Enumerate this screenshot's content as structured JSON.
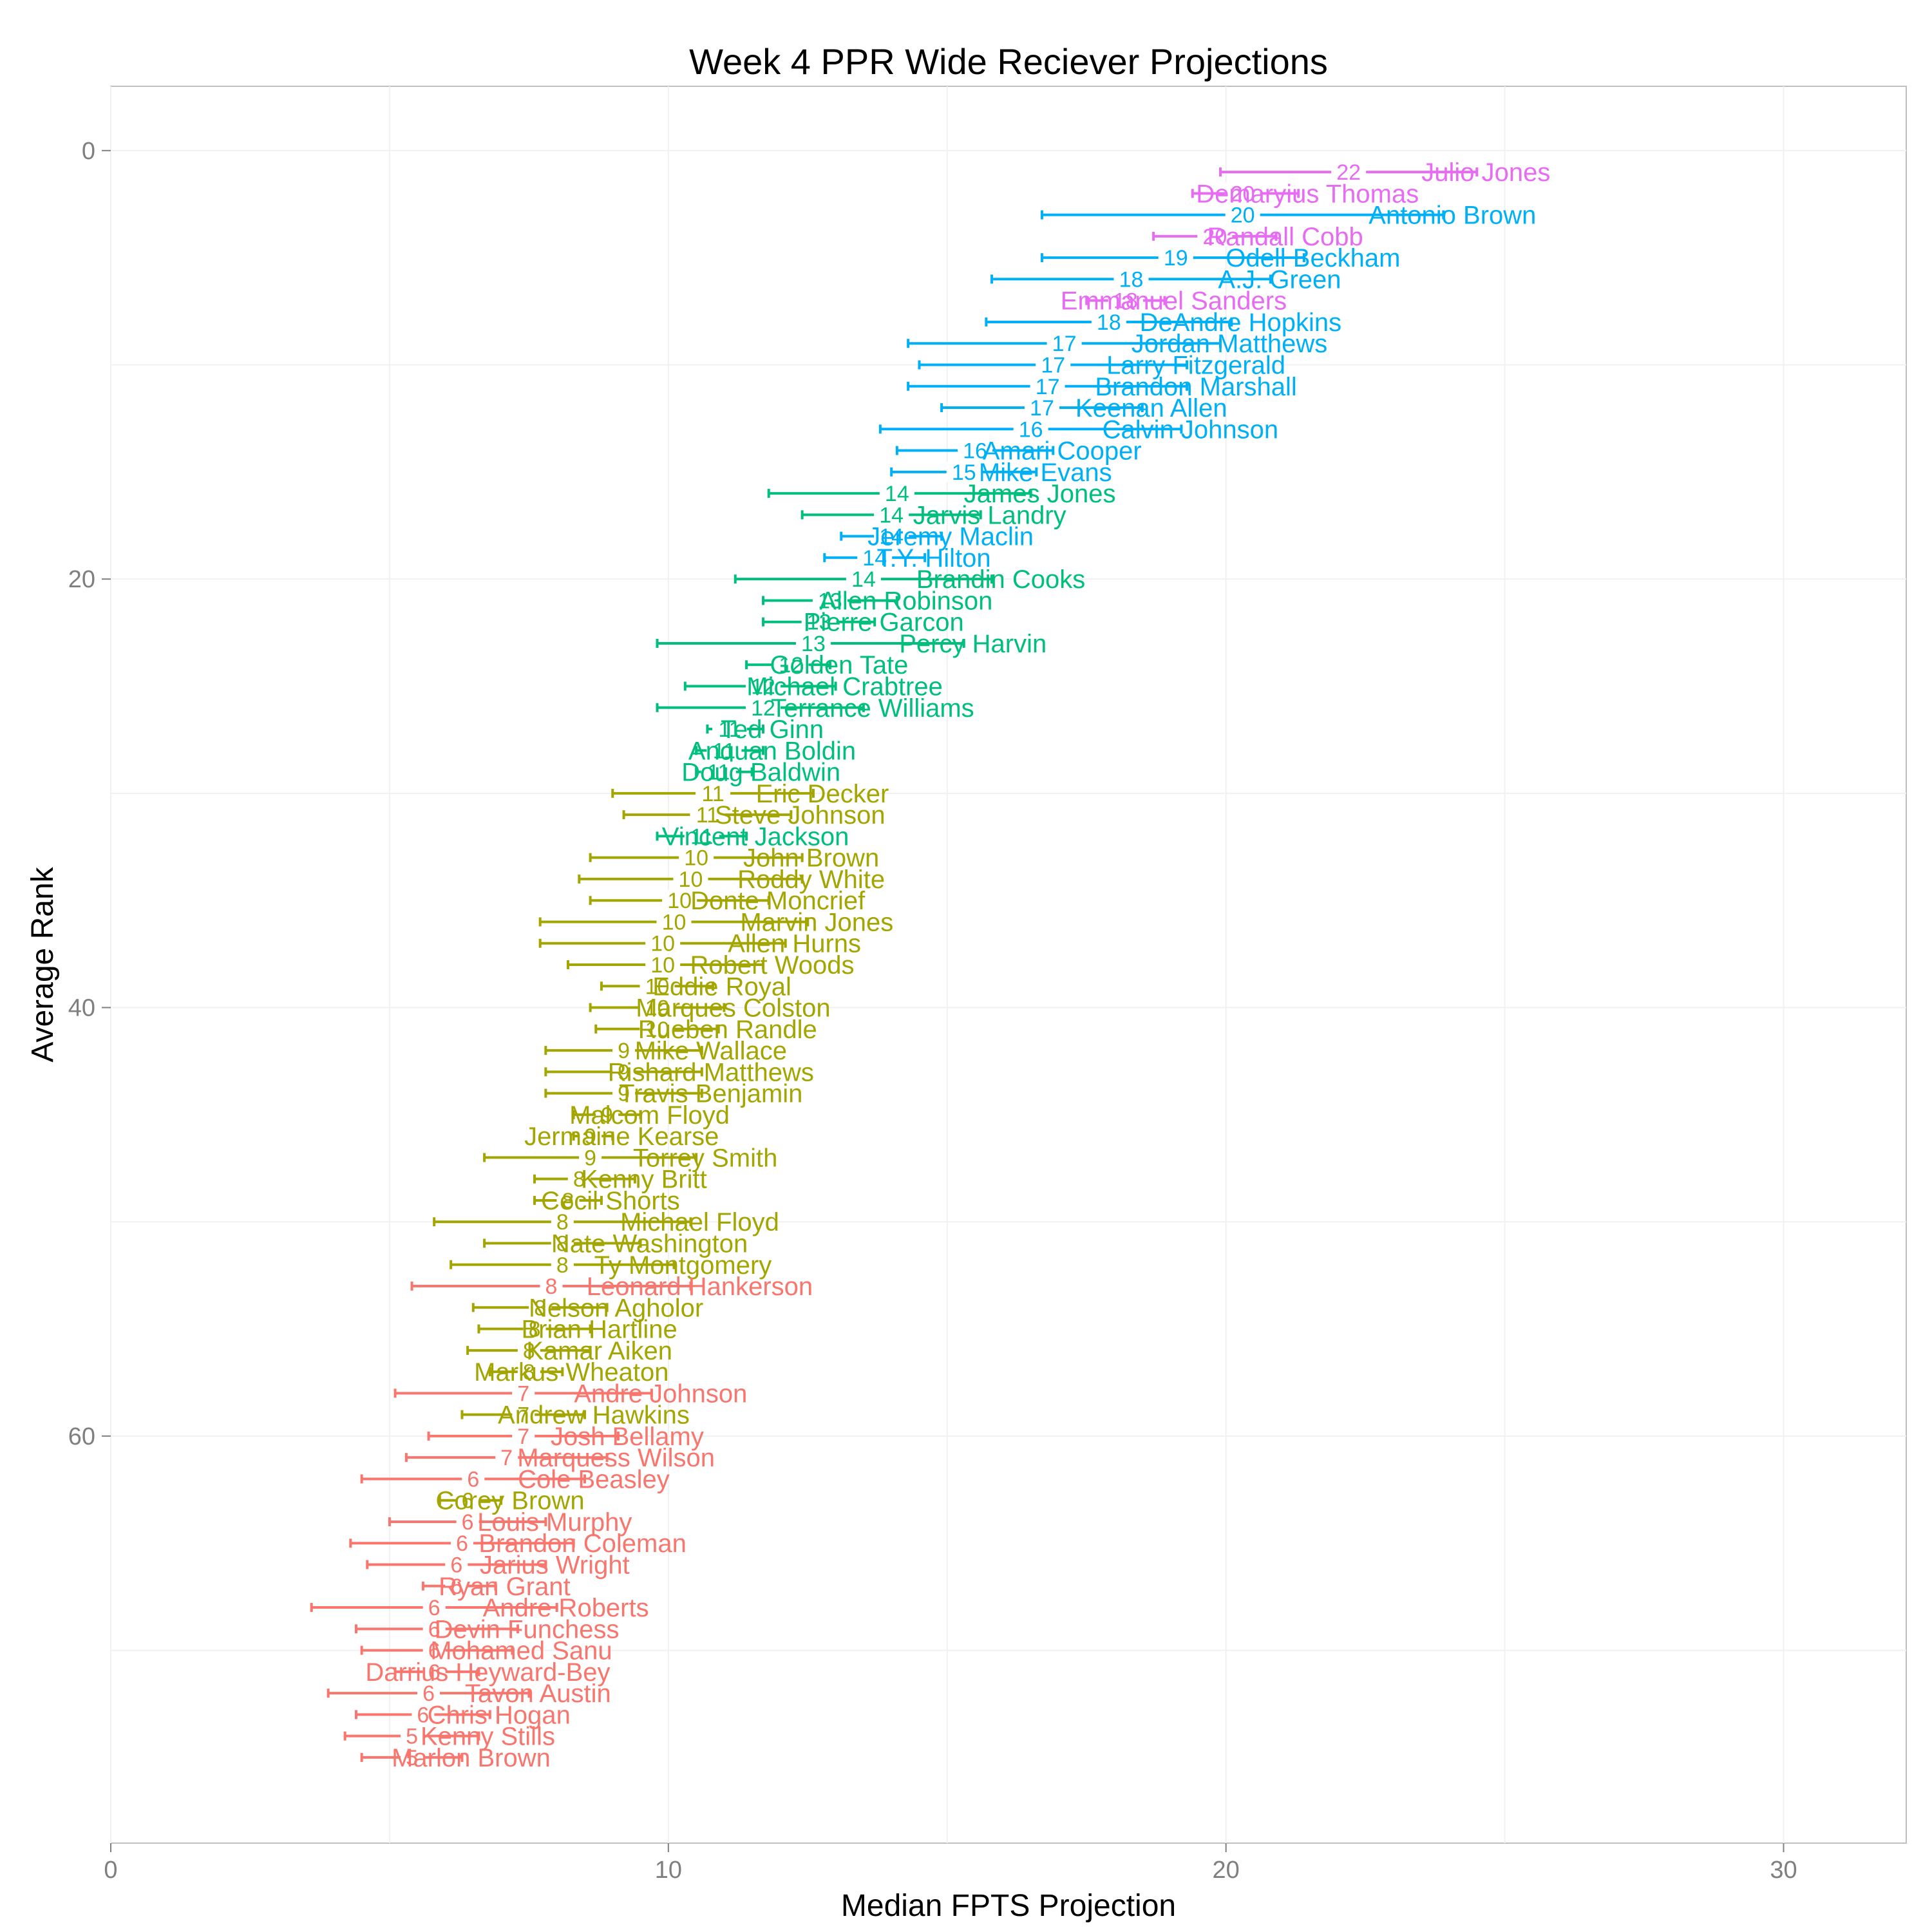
{
  "chart_data": {
    "type": "errorbar",
    "title": "Week 4 PPR Wide Reciever Projections",
    "xlabel": "Median FPTS Projection",
    "ylabel": "Average Rank",
    "xlim": [
      0,
      32.2
    ],
    "ylim": [
      79,
      -3
    ],
    "x_ticks": [
      0,
      10,
      20,
      30
    ],
    "y_ticks": [
      0,
      20,
      40,
      60
    ],
    "grid": true,
    "colors": [
      "#F8766D",
      "#A3A500",
      "#00BF7D",
      "#00B0F6",
      "#E76BF3"
    ],
    "players": [
      {
        "name": "Julio Jones",
        "rank": 1,
        "low": 19.9,
        "high": 24.5,
        "median": 22.2,
        "label": "22",
        "tier": 4
      },
      {
        "name": "Demaryius Thomas",
        "rank": 2,
        "low": 19.4,
        "high": 21.3,
        "median": 20.3,
        "label": "20",
        "tier": 4
      },
      {
        "name": "Antonio Brown",
        "rank": 3,
        "low": 16.7,
        "high": 23.9,
        "median": 20.3,
        "label": "20",
        "tier": 3
      },
      {
        "name": "Randall Cobb",
        "rank": 4,
        "low": 18.7,
        "high": 20.9,
        "median": 19.8,
        "label": "20",
        "tier": 4
      },
      {
        "name": "Odell Beckham",
        "rank": 5,
        "low": 16.7,
        "high": 21.4,
        "median": 19.1,
        "label": "19",
        "tier": 3
      },
      {
        "name": "A.J. Green",
        "rank": 6,
        "low": 15.8,
        "high": 20.8,
        "median": 18.3,
        "label": "18",
        "tier": 3
      },
      {
        "name": "Emmanuel Sanders",
        "rank": 7,
        "low": 17.5,
        "high": 18.9,
        "median": 18.2,
        "label": "18",
        "tier": 4
      },
      {
        "name": "DeAndre Hopkins",
        "rank": 8,
        "low": 15.7,
        "high": 20.1,
        "median": 17.9,
        "label": "18",
        "tier": 3
      },
      {
        "name": "Jordan Matthews",
        "rank": 9,
        "low": 14.3,
        "high": 19.9,
        "median": 17.1,
        "label": "17",
        "tier": 3
      },
      {
        "name": "Larry Fitzgerald",
        "rank": 10,
        "low": 14.5,
        "high": 19.3,
        "median": 16.9,
        "label": "17",
        "tier": 3
      },
      {
        "name": "Brandon Marshall",
        "rank": 11,
        "low": 14.3,
        "high": 19.3,
        "median": 16.8,
        "label": "17",
        "tier": 3
      },
      {
        "name": "Keenan Allen",
        "rank": 12,
        "low": 14.9,
        "high": 18.5,
        "median": 16.7,
        "label": "17",
        "tier": 3
      },
      {
        "name": "Calvin Johnson",
        "rank": 13,
        "low": 13.8,
        "high": 19.2,
        "median": 16.5,
        "label": "16",
        "tier": 3
      },
      {
        "name": "Amari Cooper",
        "rank": 14,
        "low": 14.1,
        "high": 16.9,
        "median": 15.5,
        "label": "16",
        "tier": 3
      },
      {
        "name": "Mike Evans",
        "rank": 15,
        "low": 14.0,
        "high": 16.6,
        "median": 15.3,
        "label": "15",
        "tier": 3
      },
      {
        "name": "James Jones",
        "rank": 16,
        "low": 11.8,
        "high": 16.5,
        "median": 14.1,
        "label": "14",
        "tier": 2
      },
      {
        "name": "Jarvis Landry",
        "rank": 17,
        "low": 12.4,
        "high": 15.6,
        "median": 14.0,
        "label": "14",
        "tier": 2
      },
      {
        "name": "Jeremy Maclin",
        "rank": 18,
        "low": 13.1,
        "high": 14.9,
        "median": 14.0,
        "label": "14",
        "tier": 3
      },
      {
        "name": "T.Y. Hilton",
        "rank": 19,
        "low": 12.8,
        "high": 14.6,
        "median": 13.7,
        "label": "14",
        "tier": 3
      },
      {
        "name": "Brandin Cooks",
        "rank": 20,
        "low": 11.2,
        "high": 15.8,
        "median": 13.5,
        "label": "14",
        "tier": 2
      },
      {
        "name": "Allen Robinson",
        "rank": 21,
        "low": 11.7,
        "high": 14.1,
        "median": 12.9,
        "label": "13",
        "tier": 2
      },
      {
        "name": "Pierre Garcon",
        "rank": 22,
        "low": 11.7,
        "high": 13.7,
        "median": 12.7,
        "label": "13",
        "tier": 2
      },
      {
        "name": "Percy Harvin",
        "rank": 23,
        "low": 9.8,
        "high": 15.3,
        "median": 12.6,
        "label": "13",
        "tier": 2
      },
      {
        "name": "Golden Tate",
        "rank": 24,
        "low": 11.4,
        "high": 12.9,
        "median": 12.2,
        "label": "12",
        "tier": 2
      },
      {
        "name": "Michael Crabtree",
        "rank": 25,
        "low": 10.3,
        "high": 13.0,
        "median": 11.7,
        "label": "12",
        "tier": 2
      },
      {
        "name": "Terrance Williams",
        "rank": 26,
        "low": 9.8,
        "high": 13.5,
        "median": 11.7,
        "label": "12",
        "tier": 2
      },
      {
        "name": "Ted Ginn",
        "rank": 27,
        "low": 10.7,
        "high": 11.7,
        "median": 11.1,
        "label": "11",
        "tier": 2
      },
      {
        "name": "Anquan Boldin",
        "rank": 28,
        "low": 10.5,
        "high": 11.7,
        "median": 11.0,
        "label": "11",
        "tier": 2
      },
      {
        "name": "Doug Baldwin",
        "rank": 29,
        "low": 10.5,
        "high": 11.5,
        "median": 10.9,
        "label": "11",
        "tier": 2
      },
      {
        "name": "Eric Decker",
        "rank": 30,
        "low": 9.0,
        "high": 12.6,
        "median": 10.8,
        "label": "11",
        "tier": 1
      },
      {
        "name": "Steve Johnson",
        "rank": 31,
        "low": 9.2,
        "high": 12.2,
        "median": 10.7,
        "label": "11",
        "tier": 1
      },
      {
        "name": "Vincent Jackson",
        "rank": 32,
        "low": 9.8,
        "high": 11.4,
        "median": 10.6,
        "label": "11",
        "tier": 2
      },
      {
        "name": "John Brown",
        "rank": 33,
        "low": 8.6,
        "high": 12.4,
        "median": 10.5,
        "label": "10",
        "tier": 1
      },
      {
        "name": "Roddy White",
        "rank": 34,
        "low": 8.4,
        "high": 12.4,
        "median": 10.4,
        "label": "10",
        "tier": 1
      },
      {
        "name": "Donte Moncrief",
        "rank": 35,
        "low": 8.6,
        "high": 11.8,
        "median": 10.2,
        "label": "10",
        "tier": 1
      },
      {
        "name": "Marvin Jones",
        "rank": 36,
        "low": 7.7,
        "high": 12.5,
        "median": 10.1,
        "label": "10",
        "tier": 1
      },
      {
        "name": "Allen Hurns",
        "rank": 37,
        "low": 7.7,
        "high": 12.1,
        "median": 9.9,
        "label": "10",
        "tier": 1
      },
      {
        "name": "Robert Woods",
        "rank": 38,
        "low": 8.2,
        "high": 11.7,
        "median": 9.9,
        "label": "10",
        "tier": 1
      },
      {
        "name": "Eddie Royal",
        "rank": 39,
        "low": 8.8,
        "high": 10.8,
        "median": 9.8,
        "label": "10",
        "tier": 1
      },
      {
        "name": "Marques Colston",
        "rank": 40,
        "low": 8.6,
        "high": 11.0,
        "median": 9.8,
        "label": "10",
        "tier": 1
      },
      {
        "name": "Rueben Randle",
        "rank": 41,
        "low": 8.7,
        "high": 10.9,
        "median": 9.8,
        "label": "10",
        "tier": 1
      },
      {
        "name": "Mike Wallace",
        "rank": 42,
        "low": 7.8,
        "high": 10.6,
        "median": 9.2,
        "label": "9",
        "tier": 1
      },
      {
        "name": "Rishard Matthews",
        "rank": 43,
        "low": 7.8,
        "high": 10.6,
        "median": 9.2,
        "label": "9",
        "tier": 1
      },
      {
        "name": "Travis Benjamin",
        "rank": 44,
        "low": 7.8,
        "high": 10.6,
        "median": 9.2,
        "label": "9",
        "tier": 1
      },
      {
        "name": "Malcom Floyd",
        "rank": 45,
        "low": 8.3,
        "high": 9.5,
        "median": 8.9,
        "label": "9",
        "tier": 1
      },
      {
        "name": "Jermaine Kearse",
        "rank": 46,
        "low": 8.3,
        "high": 9.0,
        "median": 8.6,
        "label": "9",
        "tier": 1
      },
      {
        "name": "Torrey Smith",
        "rank": 47,
        "low": 6.7,
        "high": 10.5,
        "median": 8.6,
        "label": "9",
        "tier": 1
      },
      {
        "name": "Kenny Britt",
        "rank": 48,
        "low": 7.6,
        "high": 9.4,
        "median": 8.4,
        "label": "8",
        "tier": 1
      },
      {
        "name": "Cecil Shorts",
        "rank": 49,
        "low": 7.6,
        "high": 8.8,
        "median": 8.2,
        "label": "8",
        "tier": 1
      },
      {
        "name": "Michael Floyd",
        "rank": 50,
        "low": 5.8,
        "high": 10.4,
        "median": 8.1,
        "label": "8",
        "tier": 1
      },
      {
        "name": "Nate Washington",
        "rank": 51,
        "low": 6.7,
        "high": 9.5,
        "median": 8.1,
        "label": "8",
        "tier": 1
      },
      {
        "name": "Ty Montgomery",
        "rank": 52,
        "low": 6.1,
        "high": 10.1,
        "median": 8.1,
        "label": "8",
        "tier": 1
      },
      {
        "name": "Leonard Hankerson",
        "rank": 53,
        "low": 5.4,
        "high": 10.4,
        "median": 7.9,
        "label": "8",
        "tier": 0
      },
      {
        "name": "Nelson Agholor",
        "rank": 54,
        "low": 6.5,
        "high": 8.9,
        "median": 7.7,
        "label": "8",
        "tier": 1
      },
      {
        "name": "Brian Hartline",
        "rank": 55,
        "low": 6.6,
        "high": 8.6,
        "median": 7.6,
        "label": "8",
        "tier": 1
      },
      {
        "name": "Kamar Aiken",
        "rank": 56,
        "low": 6.4,
        "high": 8.6,
        "median": 7.5,
        "label": "8",
        "tier": 1
      },
      {
        "name": "Markus Wheaton",
        "rank": 57,
        "low": 6.8,
        "high": 8.1,
        "median": 7.5,
        "label": "8",
        "tier": 1
      },
      {
        "name": "Andre Johnson",
        "rank": 58,
        "low": 5.1,
        "high": 9.7,
        "median": 7.4,
        "label": "7",
        "tier": 0
      },
      {
        "name": "Andrew Hawkins",
        "rank": 59,
        "low": 6.3,
        "high": 8.5,
        "median": 7.4,
        "label": "7",
        "tier": 1
      },
      {
        "name": "Josh Bellamy",
        "rank": 60,
        "low": 5.7,
        "high": 9.1,
        "median": 7.4,
        "label": "7",
        "tier": 0
      },
      {
        "name": "Marquess Wilson",
        "rank": 61,
        "low": 5.3,
        "high": 8.9,
        "median": 7.1,
        "label": "7",
        "tier": 0
      },
      {
        "name": "Cole Beasley",
        "rank": 62,
        "low": 4.5,
        "high": 8.5,
        "median": 6.5,
        "label": "6",
        "tier": 0
      },
      {
        "name": "Corey Brown",
        "rank": 63,
        "low": 5.9,
        "high": 7.0,
        "median": 6.4,
        "label": "6",
        "tier": 1
      },
      {
        "name": "Louis Murphy",
        "rank": 64,
        "low": 5.0,
        "high": 7.8,
        "median": 6.4,
        "label": "6",
        "tier": 0
      },
      {
        "name": "Brandon Coleman",
        "rank": 65,
        "low": 4.3,
        "high": 8.3,
        "median": 6.3,
        "label": "6",
        "tier": 0
      },
      {
        "name": "Jarius Wright",
        "rank": 66,
        "low": 4.6,
        "high": 7.8,
        "median": 6.2,
        "label": "6",
        "tier": 0
      },
      {
        "name": "Ryan Grant",
        "rank": 67,
        "low": 5.6,
        "high": 6.9,
        "median": 6.2,
        "label": "6",
        "tier": 0
      },
      {
        "name": "Andre Roberts",
        "rank": 68,
        "low": 3.6,
        "high": 8.0,
        "median": 5.8,
        "label": "6",
        "tier": 0
      },
      {
        "name": "Devin Funchess",
        "rank": 69,
        "low": 4.4,
        "high": 7.3,
        "median": 5.8,
        "label": "6",
        "tier": 0
      },
      {
        "name": "Mohamed Sanu",
        "rank": 70,
        "low": 4.5,
        "high": 7.2,
        "median": 5.8,
        "label": "6",
        "tier": 0
      },
      {
        "name": "Darrius Heyward-Bey",
        "rank": 71,
        "low": 5.1,
        "high": 6.6,
        "median": 5.8,
        "label": "6",
        "tier": 0
      },
      {
        "name": "Tavon Austin",
        "rank": 72,
        "low": 3.9,
        "high": 7.5,
        "median": 5.7,
        "label": "6",
        "tier": 0
      },
      {
        "name": "Chris Hogan",
        "rank": 73,
        "low": 4.4,
        "high": 6.8,
        "median": 5.6,
        "label": "6",
        "tier": 0
      },
      {
        "name": "Kenny Stills",
        "rank": 74,
        "low": 4.2,
        "high": 6.6,
        "median": 5.4,
        "label": "5",
        "tier": 0
      },
      {
        "name": "Marlon Brown",
        "rank": 75,
        "low": 4.5,
        "high": 6.3,
        "median": 5.4,
        "label": "5",
        "tier": 0
      }
    ]
  }
}
